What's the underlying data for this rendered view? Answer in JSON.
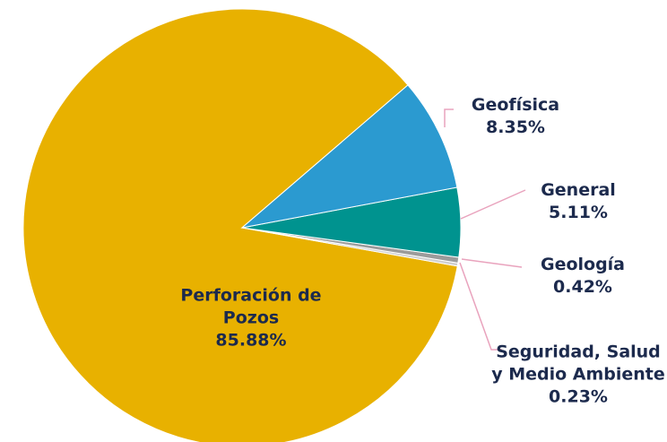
{
  "chart_data": {
    "type": "pie",
    "categories": [
      "Geofísica",
      "General",
      "Geología",
      "Seguridad, Salud y Medio Ambiente",
      "Perforación de Pozos"
    ],
    "values": [
      8.35,
      5.11,
      0.42,
      0.23,
      85.88
    ],
    "value_labels": [
      "8.35%",
      "5.11%",
      "0.42%",
      "0.23%",
      "85.88%"
    ],
    "colors": [
      "#2b9ad0",
      "#00938f",
      "#9b9b9b",
      "#cfcfcf",
      "#e8b100"
    ]
  }
}
